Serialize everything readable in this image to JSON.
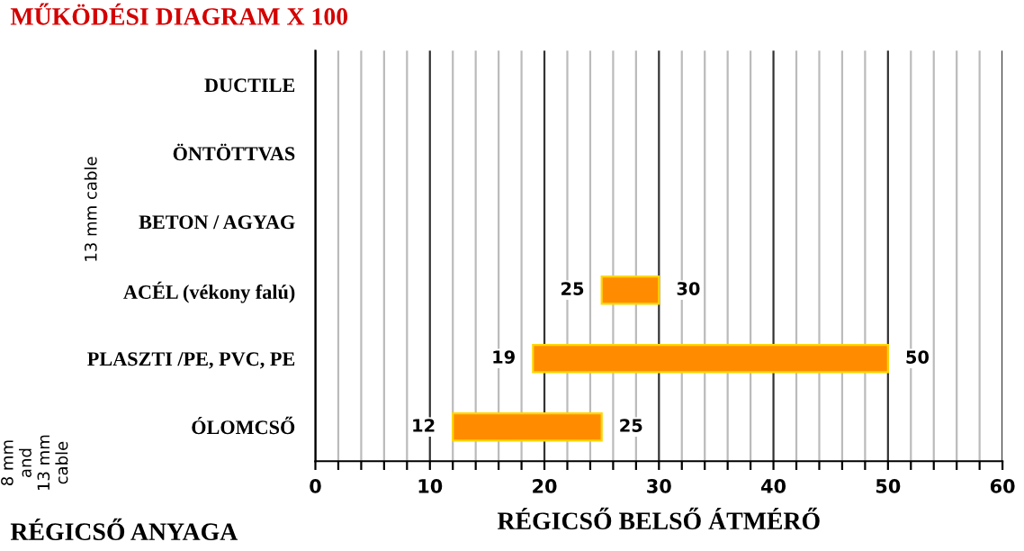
{
  "chart_data": {
    "type": "bar",
    "orientation": "horizontal",
    "title": "MŰKÖDÉSI DIAGRAM X 100",
    "xlabel": "RÉGICSŐ BELSŐ ÁTMÉRŐ",
    "ylabel": "RÉGICSŐ ANYAGA",
    "categories": [
      "DUCTILE",
      "ÖNTÖTTVAS",
      "BETON / AGYAG",
      "ACÉL (vékony falú)",
      "PLASZTI /PE, PVC, PE",
      "ÓLOMCSŐ"
    ],
    "base": [
      null,
      null,
      null,
      25,
      19,
      12
    ],
    "values": [
      null,
      null,
      null,
      5,
      31,
      13
    ],
    "color": "#ff8c00",
    "xlim": [
      0,
      60
    ],
    "xticks": [
      0,
      {
        "value": 2,
        "label": null
      },
      {
        "value": 4,
        "label": null
      },
      {
        "value": 6,
        "label": null
      },
      {
        "value": 8,
        "label": null
      },
      10,
      {
        "value": 12,
        "label": null
      },
      {
        "value": 14,
        "label": null
      },
      {
        "value": 16,
        "label": null
      },
      {
        "value": 18,
        "label": null
      },
      20,
      {
        "value": 22,
        "label": null
      },
      {
        "value": 24,
        "label": null
      },
      {
        "value": 26,
        "label": null
      },
      {
        "value": 28,
        "label": null
      },
      30,
      {
        "value": 32,
        "label": null
      },
      {
        "value": 34,
        "label": null
      },
      {
        "value": 36,
        "label": null
      },
      {
        "value": 38,
        "label": null
      },
      40,
      {
        "value": 42,
        "label": null
      },
      {
        "value": 44,
        "label": null
      },
      {
        "value": 46,
        "label": null
      },
      {
        "value": 48,
        "label": null
      },
      50,
      {
        "value": 52,
        "label": null
      },
      {
        "value": 54,
        "label": null
      },
      {
        "value": 56,
        "label": null
      },
      {
        "value": 58,
        "label": null
      },
      60
    ],
    "grid": "x",
    "annotations": [
      {
        "text": "25",
        "x": 25,
        "y": "ACÉL (vékony falú)"
      },
      {
        "text": "30",
        "x": 30,
        "y": "ACÉL (vékony falú)"
      },
      {
        "text": "19",
        "x": 19,
        "y": "PLASZTI /PE, PVC, PE"
      },
      {
        "text": "50",
        "x": 50,
        "y": "PLASZTI /PE, PVC, PE"
      },
      {
        "text": "12",
        "x": 12,
        "y": "ÓLOMCSŐ"
      },
      {
        "text": "25",
        "x": 25,
        "y": "ÓLOMCSŐ"
      },
      "13 mm cable",
      "8 mm\nand\n13 mm\ncable"
    ]
  }
}
